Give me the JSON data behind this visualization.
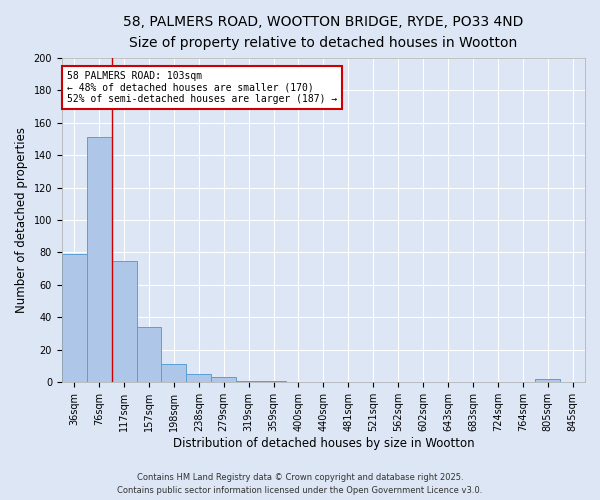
{
  "title": "58, PALMERS ROAD, WOOTTON BRIDGE, RYDE, PO33 4ND",
  "subtitle": "Size of property relative to detached houses in Wootton",
  "xlabel": "Distribution of detached houses by size in Wootton",
  "ylabel": "Number of detached properties",
  "bar_values": [
    79,
    151,
    75,
    34,
    11,
    5,
    3,
    1,
    1,
    0,
    0,
    0,
    0,
    0,
    0,
    0,
    0,
    0,
    0,
    2,
    0
  ],
  "xlabels_full": [
    "36sqm",
    "76sqm",
    "117sqm",
    "157sqm",
    "198sqm",
    "238sqm",
    "279sqm",
    "319sqm",
    "359sqm",
    "400sqm",
    "440sqm",
    "481sqm",
    "521sqm",
    "562sqm",
    "602sqm",
    "643sqm",
    "683sqm",
    "724sqm",
    "764sqm",
    "805sqm",
    "845sqm"
  ],
  "bar_color": "#aec6e8",
  "bar_edge_color": "#5a9fd4",
  "redline_x": 1.5,
  "annotation_line1": "58 PALMERS ROAD: 103sqm",
  "annotation_line2": "← 48% of detached houses are smaller (170)",
  "annotation_line3": "52% of semi-detached houses are larger (187) →",
  "annotation_box_color": "#ffffff",
  "annotation_box_edge": "#cc0000",
  "redline_color": "#cc0000",
  "ylim": [
    0,
    200
  ],
  "yticks": [
    0,
    20,
    40,
    60,
    80,
    100,
    120,
    140,
    160,
    180,
    200
  ],
  "background_color": "#dce6f5",
  "grid_color": "#ffffff",
  "footer_line1": "Contains HM Land Registry data © Crown copyright and database right 2025.",
  "footer_line2": "Contains public sector information licensed under the Open Government Licence v3.0.",
  "title_fontsize": 10,
  "subtitle_fontsize": 9,
  "axis_label_fontsize": 8.5,
  "tick_fontsize": 7,
  "annotation_fontsize": 7,
  "footer_fontsize": 6
}
